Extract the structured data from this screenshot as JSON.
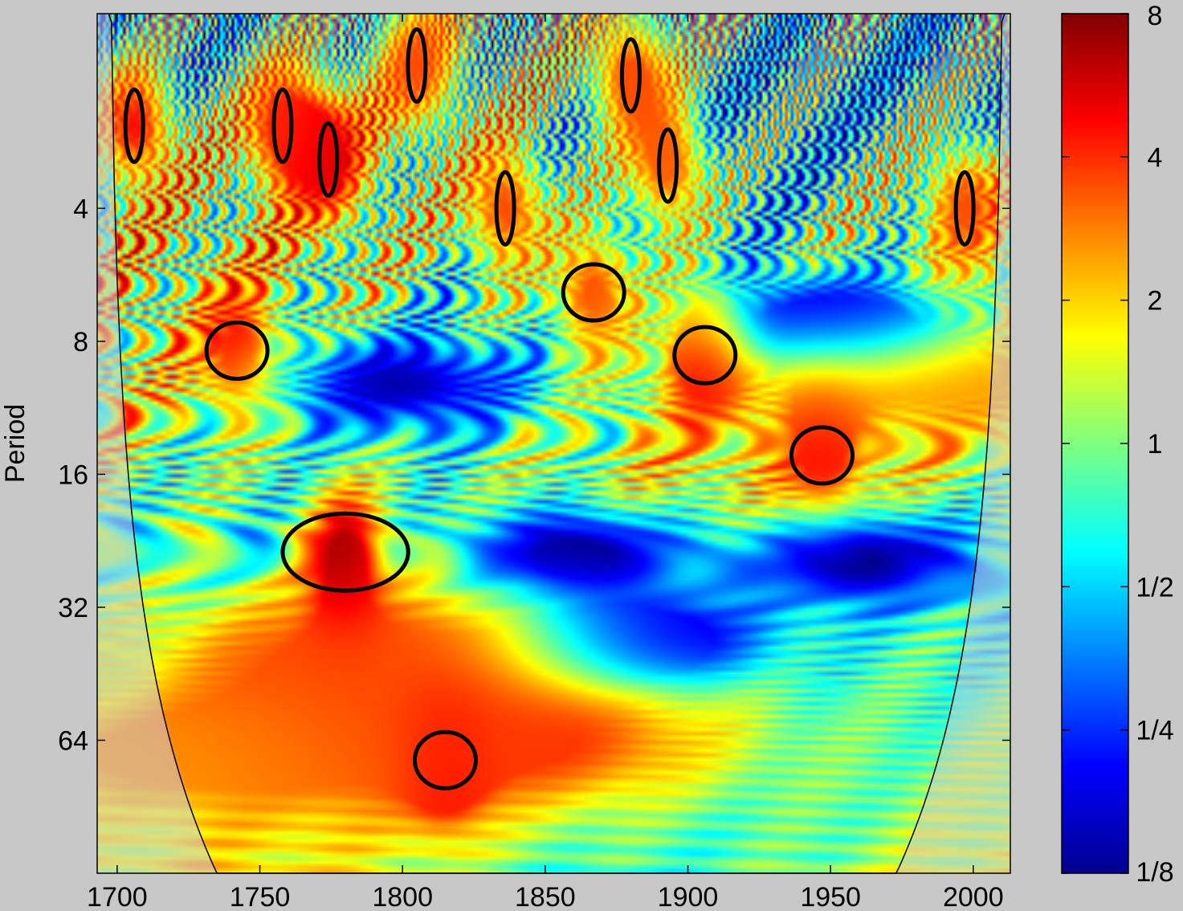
{
  "chart_data": {
    "type": "heatmap",
    "title": "",
    "subtitle": "",
    "xlabel": "",
    "ylabel": "Period",
    "x_range": [
      1693,
      2013
    ],
    "y_scale": "log2",
    "y_range": [
      1.45,
      128
    ],
    "y_direction": "increasing-downward",
    "x_ticks": [
      1700,
      1750,
      1800,
      1850,
      1900,
      1950,
      2000
    ],
    "x_tick_labels": [
      "1700",
      "1750",
      "1800",
      "1850",
      "1900",
      "1950",
      "2000"
    ],
    "y_ticks": [
      4,
      8,
      16,
      32,
      64
    ],
    "y_tick_labels": [
      "4",
      "8",
      "16",
      "32",
      "64"
    ],
    "colormap": "jet",
    "colorbar": {
      "scale": "log2",
      "range": [
        0.125,
        8
      ],
      "ticks": [
        0.125,
        0.25,
        0.5,
        1,
        2,
        4,
        8
      ],
      "tick_labels": [
        "1/8",
        "1/4",
        "1/2",
        "1",
        "2",
        "4",
        "8"
      ]
    },
    "cone_of_influence": {
      "description": "hatched/faded region outside the cone where edge effects matter",
      "apex": {
        "year": 1853,
        "period": 128
      }
    },
    "significant_regions": [
      {
        "year_center": 1706,
        "period_center": 2.6,
        "power": 4.5
      },
      {
        "year_center": 1758,
        "period_center": 2.6,
        "power": 4.0
      },
      {
        "year_center": 1774,
        "period_center": 3.1,
        "power": 5.5
      },
      {
        "year_center": 1805,
        "period_center": 1.9,
        "power": 3.5
      },
      {
        "year_center": 1836,
        "period_center": 4.0,
        "power": 3.5
      },
      {
        "year_center": 1880,
        "period_center": 2.0,
        "power": 3.5
      },
      {
        "year_center": 1893,
        "period_center": 3.2,
        "power": 3.2
      },
      {
        "year_center": 1867,
        "period_center": 6.2,
        "power": 3.5
      },
      {
        "year_center": 1997,
        "period_center": 4.0,
        "power": 3.5
      },
      {
        "year_center": 1742,
        "period_center": 8.4,
        "power": 5.0
      },
      {
        "year_center": 1906,
        "period_center": 8.6,
        "power": 6.0
      },
      {
        "year_center": 1947,
        "period_center": 14.5,
        "power": 5.0
      },
      {
        "year_center": 1780,
        "period_center": 24.0,
        "power": 7.5
      },
      {
        "year_center": 1815,
        "period_center": 71.0,
        "power": 5.0
      }
    ],
    "low_power_regions": [
      {
        "year_center": 1860,
        "period_center": 24.0,
        "power": 0.125
      },
      {
        "year_center": 1960,
        "period_center": 25.0,
        "power": 0.125
      },
      {
        "year_center": 1890,
        "period_center": 38.0,
        "power": 0.125
      },
      {
        "year_center": 1800,
        "period_center": 10.0,
        "power": 0.15
      },
      {
        "year_center": 1950,
        "period_center": 7.0,
        "power": 0.15
      }
    ],
    "high_power_bands": [
      {
        "year_center": 1790,
        "period_center": 40.0,
        "power": 3.5
      },
      {
        "year_center": 1830,
        "period_center": 65.0,
        "power": 4.0
      },
      {
        "year_center": 1720,
        "period_center": 70.0,
        "power": 2.5
      },
      {
        "year_center": 1990,
        "period_center": 10.0,
        "power": 2.5
      }
    ]
  }
}
